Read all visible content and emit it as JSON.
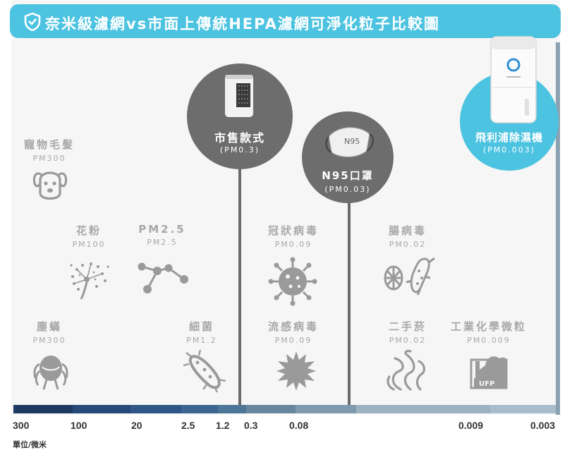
{
  "header": {
    "title": "奈米級濾網vs市面上傳統HEPA濾網可淨化粒子比較圖",
    "icon": "shield-check-icon",
    "color": "#4cc3e0"
  },
  "markers": {
    "market": {
      "name": "市售款式",
      "size": "(PM0.3)",
      "icon": "air-purifier-icon"
    },
    "n95": {
      "name": "N95口罩",
      "size": "(PM0.03)",
      "icon": "n95-mask-icon",
      "mask_text": "N95"
    },
    "philips": {
      "name": "飛利浦除濕機",
      "size": "(PM0.003)",
      "icon": "philips-dehumidifier-icon",
      "color": "#4cc3e0"
    }
  },
  "particles": [
    {
      "name": "寵物毛髮",
      "size": "PM300",
      "icon": "pet-dog-icon"
    },
    {
      "name": "花粉",
      "size": "PM100",
      "icon": "pollen-icon"
    },
    {
      "name": "PM2.5",
      "size": "PM2.5",
      "icon": "pm25-molecule-icon"
    },
    {
      "name": "冠狀病毒",
      "size": "PM0.09",
      "icon": "coronavirus-icon"
    },
    {
      "name": "腸病毒",
      "size": "PM0.02",
      "icon": "enterovirus-icon"
    },
    {
      "name": "塵蟎",
      "size": "PM300",
      "icon": "dust-mite-icon"
    },
    {
      "name": "細菌",
      "size": "PM1.2",
      "icon": "bacteria-icon"
    },
    {
      "name": "流感病毒",
      "size": "PM0.09",
      "icon": "flu-virus-icon"
    },
    {
      "name": "二手菸",
      "size": "PM0.02",
      "icon": "smoke-icon"
    },
    {
      "name": "工業化學微粒",
      "size": "PM0.009",
      "icon": "ufp-factory-icon",
      "badge": "UFP"
    }
  ],
  "scale": {
    "ticks": [
      "300",
      "100",
      "20",
      "2.5",
      "1.2",
      "0.3",
      "0.08",
      "0.009",
      "0.003"
    ],
    "unit": "單位/微米",
    "colors": [
      "#1d3a63",
      "#26497a",
      "#2f5686",
      "#3c6692",
      "#4d7597",
      "#66879f",
      "#7f9aae",
      "#9db2c1",
      "#a9bccb"
    ]
  }
}
